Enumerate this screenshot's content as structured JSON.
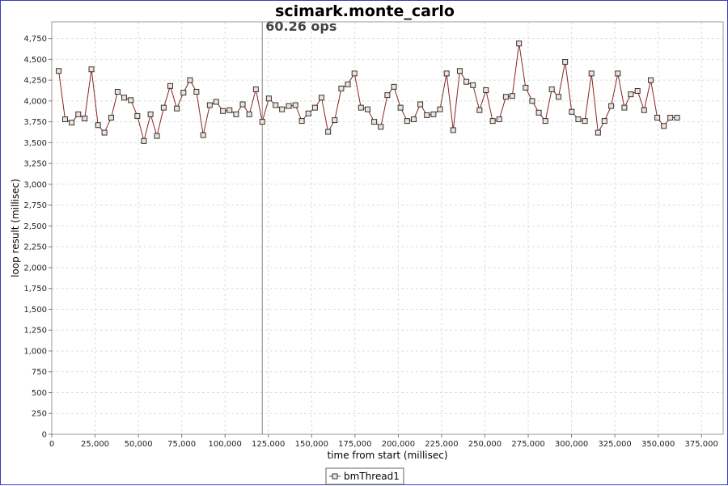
{
  "chart_data": {
    "type": "line",
    "title": "scimark.monte_carlo",
    "xlabel": "time from start (millisec)",
    "ylabel": "loop result (millisec)",
    "xlim": [
      0,
      387500
    ],
    "ylim": [
      0,
      4950
    ],
    "x_ticks": [
      0,
      25000,
      50000,
      75000,
      100000,
      125000,
      150000,
      175000,
      200000,
      225000,
      250000,
      275000,
      300000,
      325000,
      350000,
      375000
    ],
    "x_tick_labels": [
      "0",
      "25,000",
      "50,000",
      "75,000",
      "100,000",
      "125,000",
      "150,000",
      "175,000",
      "200,000",
      "225,000",
      "250,000",
      "275,000",
      "300,000",
      "325,000",
      "350,000",
      "375,000"
    ],
    "y_ticks": [
      0,
      250,
      500,
      750,
      1000,
      1250,
      1500,
      1750,
      2000,
      2250,
      2500,
      2750,
      3000,
      3250,
      3500,
      3750,
      4000,
      4250,
      4500,
      4750
    ],
    "y_tick_labels": [
      "0",
      "250",
      "500",
      "750",
      "1,000",
      "1,250",
      "1,500",
      "1,750",
      "2,000",
      "2,250",
      "2,500",
      "2,750",
      "3,000",
      "3,250",
      "3,500",
      "3,750",
      "4,000",
      "4,250",
      "4,500",
      "4,750"
    ],
    "grid": true,
    "legend_position": "bottom-center",
    "annotation": {
      "text": "60.26 ops",
      "x": 121500
    },
    "series": [
      {
        "name": "bmThread1",
        "color": "#8b2323",
        "marker": "square",
        "x": [
          4000,
          7700,
          11500,
          15300,
          19000,
          22900,
          26700,
          30400,
          34300,
          38000,
          41800,
          45600,
          49400,
          53200,
          57000,
          60700,
          64600,
          68400,
          72200,
          76000,
          79800,
          83500,
          87400,
          91200,
          94900,
          98800,
          102600,
          106400,
          110200,
          114000,
          117800,
          121500,
          125300,
          129200,
          132900,
          136800,
          140600,
          144300,
          148100,
          151900,
          155700,
          159500,
          163300,
          167100,
          170900,
          174700,
          178500,
          182300,
          186100,
          189900,
          193700,
          197500,
          201300,
          205100,
          208900,
          212700,
          216500,
          220300,
          224100,
          227900,
          231700,
          235500,
          239300,
          243100,
          246900,
          250600,
          254500,
          258300,
          262100,
          265800,
          269700,
          273500,
          277300,
          281100,
          284900,
          288600,
          292500,
          296300,
          300100,
          303900,
          307700,
          311500,
          315300,
          319000,
          322900,
          326700,
          330500,
          334200,
          338100,
          341900,
          345700,
          349500,
          353300,
          357000,
          360900
        ],
        "y": [
          4360,
          3780,
          3740,
          3840,
          3790,
          4380,
          3710,
          3620,
          3800,
          4110,
          4040,
          4010,
          3820,
          3520,
          3840,
          3580,
          3920,
          4180,
          3910,
          4100,
          4250,
          4110,
          3590,
          3950,
          3990,
          3880,
          3890,
          3840,
          3960,
          3840,
          4140,
          3750,
          4030,
          3950,
          3900,
          3940,
          3950,
          3760,
          3850,
          3920,
          4040,
          3630,
          3770,
          4150,
          4200,
          4330,
          3920,
          3900,
          3750,
          3690,
          4070,
          4170,
          3920,
          3760,
          3780,
          3960,
          3830,
          3840,
          3900,
          4330,
          3650,
          4360,
          4230,
          4190,
          3890,
          4130,
          3760,
          3780,
          4050,
          4060,
          4690,
          4160,
          4000,
          3860,
          3760,
          4140,
          4050,
          4470,
          3870,
          3780,
          3760,
          4330,
          3620,
          3760,
          3940,
          4330,
          3920,
          4080,
          4120,
          3890,
          4250,
          3800,
          3700,
          3800,
          3800
        ]
      }
    ]
  }
}
